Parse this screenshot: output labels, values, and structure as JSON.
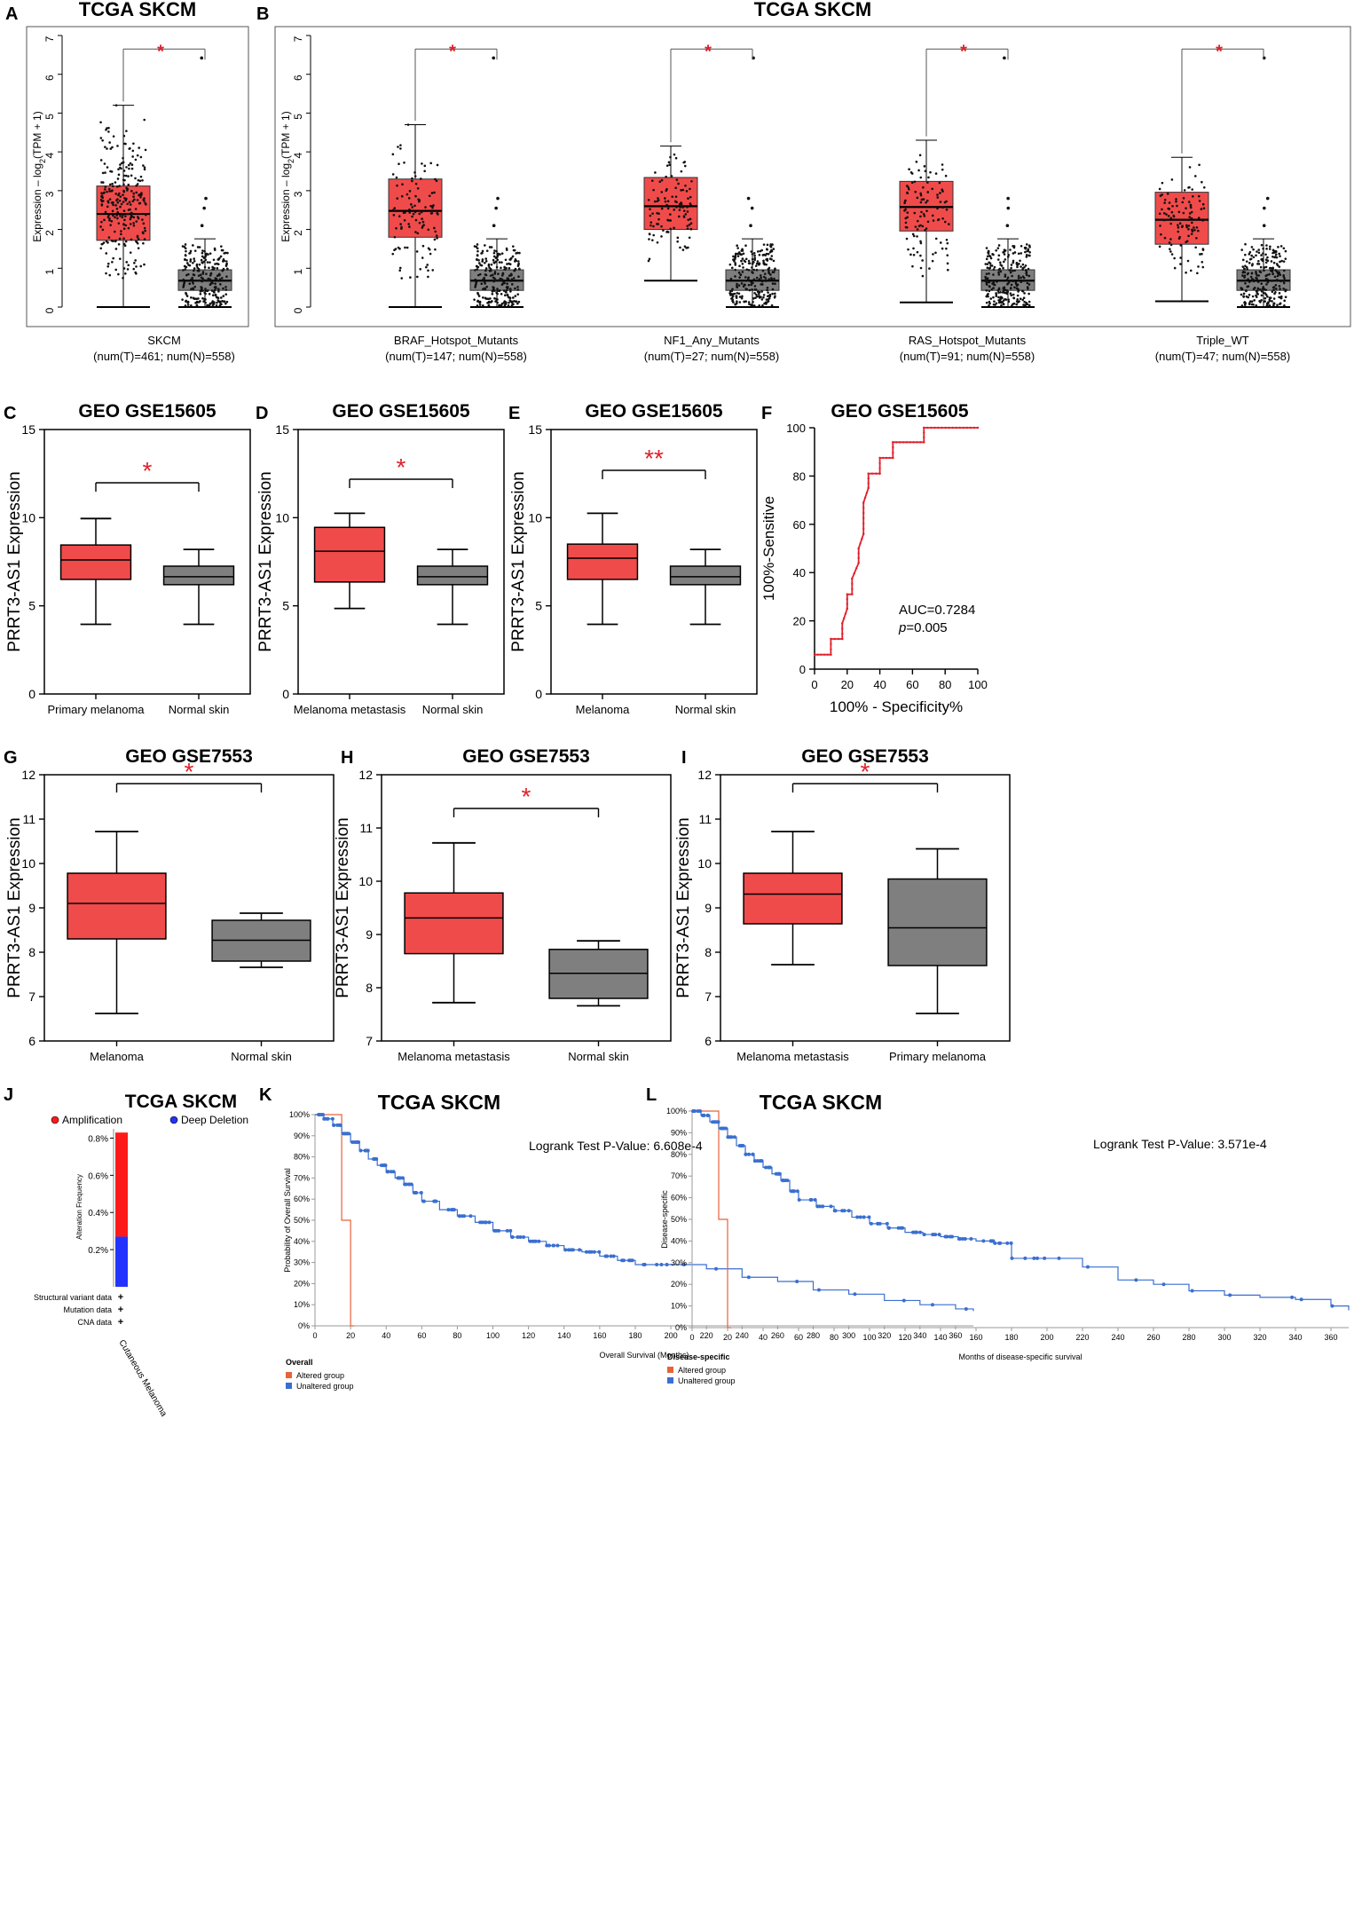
{
  "colors": {
    "tumor": "#f04b4b",
    "normal": "#7f7f7f",
    "sig": "#e0202a",
    "km_blue": "#3a6fd0",
    "km_orange": "#e8623a",
    "amp": "#ff1a1a",
    "del": "#2233ff"
  },
  "chart_data": [
    {
      "panel": "A",
      "type": "box",
      "title": "TCGA SKCM",
      "ylabel": "Expression – log2(TPM + 1)",
      "ylim": [
        0,
        7
      ],
      "yticks": [
        "0",
        "1",
        "2",
        "3",
        "4",
        "5",
        "6",
        "7"
      ],
      "groups": [
        {
          "label": "SKCM",
          "sublabel": "(num(T)=461; num(N)=558)",
          "tumor": {
            "min": 0.0,
            "q1": 1.72,
            "median": 2.4,
            "q3": 3.12,
            "max": 5.2
          },
          "normal": {
            "min": 0.0,
            "q1": 0.43,
            "median": 0.68,
            "q3": 0.96,
            "max": 1.76,
            "outliers": [
              6.42,
              2.8,
              2.55,
              2.1
            ]
          },
          "sig": "*"
        }
      ]
    },
    {
      "panel": "B",
      "type": "box",
      "title": "TCGA SKCM",
      "ylabel": "Expression – log2(TPM + 1)",
      "ylim": [
        0,
        7
      ],
      "yticks": [
        "0",
        "1",
        "2",
        "3",
        "4",
        "5",
        "6",
        "7"
      ],
      "groups": [
        {
          "label": "BRAF_Hotspot_Mutants",
          "sublabel": "(num(T)=147; num(N)=558)",
          "tumor": {
            "min": 0.0,
            "q1": 1.8,
            "median": 2.48,
            "q3": 3.3,
            "max": 4.7
          },
          "normal": {
            "min": 0.0,
            "q1": 0.43,
            "median": 0.68,
            "q3": 0.96,
            "max": 1.76,
            "outliers": [
              6.42,
              2.8,
              2.55,
              2.1
            ]
          },
          "sig": "*"
        },
        {
          "label": "NF1_Any_Mutants",
          "sublabel": "(num(T)=27; num(N)=558)",
          "tumor": {
            "min": 0.68,
            "q1": 2.0,
            "median": 2.6,
            "q3": 3.34,
            "max": 4.15
          },
          "normal": {
            "min": 0.0,
            "q1": 0.43,
            "median": 0.68,
            "q3": 0.96,
            "max": 1.76,
            "outliers": [
              6.42,
              2.8,
              2.55,
              2.1
            ]
          },
          "sig": "*"
        },
        {
          "label": "RAS_Hotspot_Mutants",
          "sublabel": "(num(T)=91; num(N)=558)",
          "tumor": {
            "min": 0.12,
            "q1": 1.96,
            "median": 2.58,
            "q3": 3.24,
            "max": 4.3
          },
          "normal": {
            "min": 0.0,
            "q1": 0.43,
            "median": 0.68,
            "q3": 0.96,
            "max": 1.76,
            "outliers": [
              6.42,
              2.8,
              2.55,
              2.1
            ]
          },
          "sig": "*"
        },
        {
          "label": "Triple_WT",
          "sublabel": "(num(T)=47; num(N)=558)",
          "tumor": {
            "min": 0.15,
            "q1": 1.62,
            "median": 2.25,
            "q3": 2.96,
            "max": 3.86
          },
          "normal": {
            "min": 0.0,
            "q1": 0.43,
            "median": 0.68,
            "q3": 0.96,
            "max": 1.76,
            "outliers": [
              6.42,
              2.8,
              2.55,
              2.1
            ]
          },
          "sig": "*"
        }
      ]
    },
    {
      "panel": "C",
      "type": "box",
      "title": "GEO GSE15605",
      "ylabel": "PRRT3-AS1 Expression",
      "ylim": [
        0,
        15
      ],
      "yticks": [
        "0",
        "5",
        "10",
        "15"
      ],
      "sig": "*",
      "boxes": [
        {
          "label": "Primary  melanoma",
          "color": "tumor",
          "min": 3.95,
          "q1": 6.5,
          "median": 7.6,
          "q3": 8.45,
          "max": 9.95
        },
        {
          "label": "Normal  skin",
          "color": "normal",
          "min": 3.95,
          "q1": 6.2,
          "median": 6.65,
          "q3": 7.25,
          "max": 8.2
        }
      ]
    },
    {
      "panel": "D",
      "type": "box",
      "title": "GEO GSE15605",
      "ylabel": "PRRT3-AS1 Expression",
      "ylim": [
        0,
        15
      ],
      "yticks": [
        "0",
        "5",
        "10",
        "15"
      ],
      "sig": "*",
      "boxes": [
        {
          "label": "Melanoma  metastasis",
          "color": "tumor",
          "min": 4.85,
          "q1": 6.35,
          "median": 8.1,
          "q3": 9.45,
          "max": 10.25
        },
        {
          "label": "Normal  skin",
          "color": "normal",
          "min": 3.95,
          "q1": 6.2,
          "median": 6.65,
          "q3": 7.25,
          "max": 8.2
        }
      ]
    },
    {
      "panel": "E",
      "type": "box",
      "title": "GEO GSE15605",
      "ylabel": "PRRT3-AS1 Expression",
      "ylim": [
        0,
        15
      ],
      "yticks": [
        "0",
        "5",
        "10",
        "15"
      ],
      "sig": "**",
      "boxes": [
        {
          "label": "Melanoma",
          "color": "tumor",
          "min": 3.95,
          "q1": 6.5,
          "median": 7.7,
          "q3": 8.5,
          "max": 10.25
        },
        {
          "label": "Normal  skin",
          "color": "normal",
          "min": 3.95,
          "q1": 6.2,
          "median": 6.65,
          "q3": 7.25,
          "max": 8.2
        }
      ]
    },
    {
      "panel": "F",
      "type": "line",
      "title": "GEO GSE15605",
      "xlabel": "100% - Specificity%",
      "ylabel": "100%-Sensitive",
      "xlim": [
        0,
        100
      ],
      "ylim": [
        0,
        100
      ],
      "xticks": [
        "0",
        "20",
        "40",
        "60",
        "80",
        "100"
      ],
      "yticks": [
        "0",
        "20",
        "40",
        "60",
        "80",
        "100"
      ],
      "auc_text": "AUC=0.7284",
      "p_label": "p",
      "p_text": "=0.005",
      "x": [
        0,
        10,
        10,
        17,
        17,
        20,
        20,
        23,
        23,
        27,
        27,
        30,
        30,
        33,
        33,
        40,
        40,
        48,
        48,
        67,
        67,
        100
      ],
      "y": [
        6,
        6,
        12.5,
        12.5,
        19,
        25,
        31,
        31,
        37.5,
        44,
        50,
        56,
        69,
        75,
        81,
        81,
        87.5,
        87.5,
        94,
        94,
        100,
        100
      ]
    },
    {
      "panel": "G",
      "type": "box",
      "title": "GEO GSE7553",
      "ylabel": "PRRT3-AS1 Expression",
      "ylim": [
        6,
        12
      ],
      "yticks": [
        "6",
        "7",
        "8",
        "9",
        "10",
        "11",
        "12"
      ],
      "sig": "*",
      "boxes": [
        {
          "label": "Melanoma",
          "color": "tumor",
          "min": 6.62,
          "q1": 8.3,
          "median": 9.1,
          "q3": 9.78,
          "max": 10.72
        },
        {
          "label": "Normal  skin",
          "color": "normal",
          "min": 7.66,
          "q1": 7.8,
          "median": 8.27,
          "q3": 8.72,
          "max": 8.88
        }
      ]
    },
    {
      "panel": "H",
      "type": "box",
      "title": "GEO GSE7553",
      "ylabel": "PRRT3-AS1 Expression",
      "ylim": [
        7,
        12
      ],
      "yticks": [
        "7",
        "8",
        "9",
        "10",
        "11",
        "12"
      ],
      "sig": "*",
      "boxes": [
        {
          "label": "Melanoma  metastasis",
          "color": "tumor",
          "min": 7.72,
          "q1": 8.64,
          "median": 9.31,
          "q3": 9.78,
          "max": 10.72
        },
        {
          "label": "Normal  skin",
          "color": "normal",
          "min": 7.66,
          "q1": 7.8,
          "median": 8.27,
          "q3": 8.72,
          "max": 8.88
        }
      ]
    },
    {
      "panel": "I",
      "type": "box",
      "title": "GEO GSE7553",
      "ylabel": "PRRT3-AS1 Expression",
      "ylim": [
        6,
        12
      ],
      "yticks": [
        "6",
        "7",
        "8",
        "9",
        "10",
        "11",
        "12"
      ],
      "sig": "*",
      "boxes": [
        {
          "label": "Melanoma  metastasis",
          "color": "tumor",
          "min": 7.72,
          "q1": 8.64,
          "median": 9.31,
          "q3": 9.78,
          "max": 10.72
        },
        {
          "label": "Primary  melanoma",
          "color": "normal",
          "min": 6.62,
          "q1": 7.7,
          "median": 8.55,
          "q3": 9.65,
          "max": 10.33
        }
      ]
    },
    {
      "panel": "J",
      "type": "bar",
      "title": "TCGA SKCM",
      "ylabel": "Alteration Frequency",
      "ylim": [
        0,
        0.85
      ],
      "yticks": [
        "0.2%",
        "0.4%",
        "0.6%",
        "0.8%"
      ],
      "legend": [
        "Amplification",
        "Deep Deletion"
      ],
      "stack": [
        {
          "name": "Deep Deletion",
          "value": 0.27
        },
        {
          "name": "Amplification",
          "value": 0.56
        }
      ],
      "rows": [
        "Structural variant data",
        "Mutation data",
        "CNA data"
      ],
      "row_mark": "+",
      "category": "Cutaneous Melanoma"
    },
    {
      "panel": "K",
      "type": "line",
      "title": "TCGA SKCM",
      "pvalue_text": "Logrank Test P-Value: 6.608e-4",
      "xlabel": "Overall Survival (Months)",
      "ylabel": "Probability of Overall Survival",
      "xlim": [
        0,
        370
      ],
      "ylim": [
        0,
        100
      ],
      "xticks": [
        "0",
        "20",
        "40",
        "60",
        "80",
        "100",
        "120",
        "140",
        "160",
        "180",
        "200",
        "220",
        "240",
        "260",
        "280",
        "300",
        "320",
        "340",
        "360"
      ],
      "yticks": [
        "0%",
        "10%",
        "20%",
        "30%",
        "40%",
        "50%",
        "60%",
        "70%",
        "80%",
        "90%",
        "100%"
      ],
      "legend_title": "Overall",
      "legend": [
        "Altered group",
        "Unaltered group"
      ],
      "series": [
        {
          "name": "Altered group",
          "x": [
            0,
            15,
            15,
            20,
            20,
            22
          ],
          "y": [
            100,
            100,
            50,
            50,
            0,
            0
          ]
        },
        {
          "name": "Unaltered group",
          "x": [
            0,
            5,
            10,
            15,
            20,
            25,
            30,
            35,
            40,
            45,
            50,
            55,
            60,
            70,
            80,
            90,
            100,
            110,
            120,
            130,
            140,
            150,
            160,
            170,
            180,
            200,
            220,
            240,
            260,
            280,
            300,
            320,
            340,
            360,
            370
          ],
          "y": [
            100,
            98,
            95,
            91,
            87,
            83,
            79,
            76,
            73,
            70,
            67,
            63,
            59,
            55,
            52,
            49,
            45,
            42,
            40,
            38,
            36,
            35,
            33,
            31,
            29,
            29,
            27,
            23,
            21,
            17,
            15,
            12,
            10,
            8,
            7
          ]
        }
      ]
    },
    {
      "panel": "L",
      "type": "line",
      "title": "TCGA SKCM",
      "pvalue_text": "Logrank Test P-Value: 3.571e-4",
      "xlabel": "Months of disease-specific survival",
      "ylabel": "Disease-specific",
      "xlim": [
        0,
        370
      ],
      "ylim": [
        0,
        100
      ],
      "xticks": [
        "0",
        "20",
        "40",
        "60",
        "80",
        "100",
        "120",
        "140",
        "160",
        "180",
        "200",
        "220",
        "240",
        "260",
        "280",
        "300",
        "320",
        "340",
        "360"
      ],
      "yticks": [
        "0%",
        "10%",
        "20%",
        "30%",
        "40%",
        "50%",
        "60%",
        "70%",
        "80%",
        "90%",
        "100%"
      ],
      "legend_title": "Disease-specific",
      "legend": [
        "Altered group",
        "Unaltered group"
      ],
      "series": [
        {
          "name": "Altered group",
          "x": [
            0,
            15,
            15,
            20,
            20,
            22
          ],
          "y": [
            100,
            100,
            50,
            50,
            0,
            0
          ]
        },
        {
          "name": "Unaltered group",
          "x": [
            0,
            5,
            10,
            15,
            20,
            25,
            30,
            35,
            40,
            45,
            50,
            55,
            60,
            70,
            80,
            90,
            100,
            110,
            120,
            130,
            140,
            150,
            160,
            170,
            180,
            200,
            220,
            240,
            260,
            280,
            300,
            320,
            340,
            360,
            370
          ],
          "y": [
            100,
            98,
            95,
            92,
            88,
            84,
            80,
            77,
            74,
            71,
            68,
            63,
            59,
            56,
            54,
            51,
            48,
            46,
            44,
            43,
            42,
            41,
            40,
            39,
            32,
            32,
            28,
            22,
            20,
            17,
            15,
            14,
            13,
            10,
            8
          ]
        }
      ]
    }
  ],
  "axis_labels": {
    "tpm_lead": "Expression – log",
    "tpm_sub": "2",
    "tpm_tail": "(TPM + 1)"
  }
}
